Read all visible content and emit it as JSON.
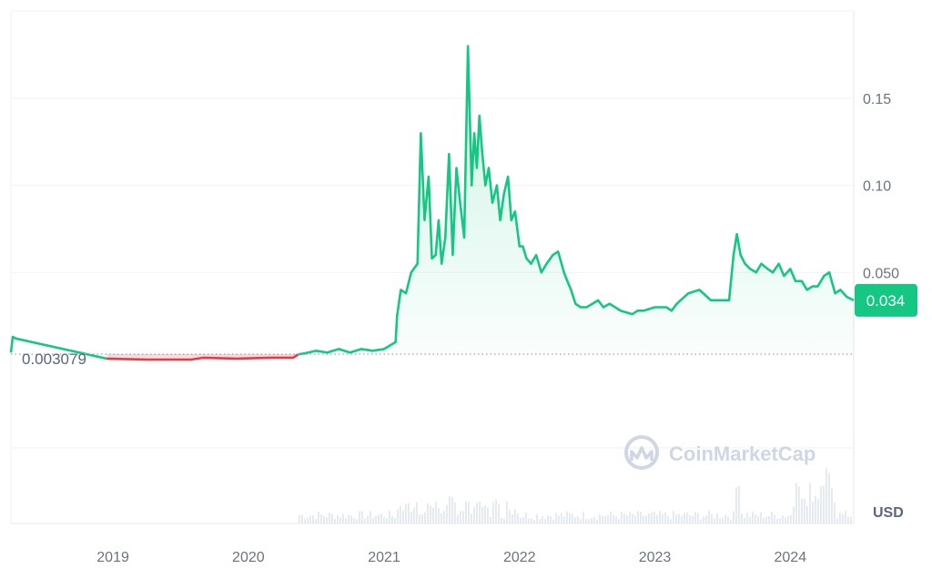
{
  "chart_data": {
    "type": "area",
    "title": "",
    "xlabel": "",
    "ylabel": "",
    "currency": "USD",
    "y_ticks": [
      {
        "value": 0.15,
        "label": "0.15"
      },
      {
        "value": 0.1,
        "label": "0.10"
      },
      {
        "value": 0.05,
        "label": "0.050"
      }
    ],
    "x_ticks": [
      {
        "date": "2019-01-01",
        "label": "2019"
      },
      {
        "date": "2020-01-01",
        "label": "2020"
      },
      {
        "date": "2021-01-01",
        "label": "2021"
      },
      {
        "date": "2022-01-01",
        "label": "2022"
      },
      {
        "date": "2023-01-01",
        "label": "2023"
      },
      {
        "date": "2024-01-01",
        "label": "2024"
      }
    ],
    "baseline": {
      "value": 0.003079,
      "label": "0.003079"
    },
    "current": {
      "value": 0.034,
      "label": "0.034"
    },
    "colors": {
      "up": "#16c784",
      "down": "#ea3943",
      "pill": "#16c784"
    },
    "watermark": "CoinMarketCap",
    "series": [
      {
        "x": [
          "2018-04-01",
          "2018-04-06",
          "2018-04-15",
          "2018-12-15",
          "2019-04-01",
          "2019-08-01",
          "2019-09-01",
          "2019-12-01",
          "2020-03-01",
          "2020-05-01",
          "2020-05-15",
          "2020-06-01",
          "2020-07-01",
          "2020-08-01",
          "2020-09-01",
          "2020-10-01",
          "2020-11-01",
          "2020-12-01",
          "2021-01-01",
          "2021-02-01",
          "2021-02-05",
          "2021-02-15",
          "2021-03-01",
          "2021-03-15",
          "2021-04-01",
          "2021-04-10",
          "2021-04-20",
          "2021-05-01",
          "2021-05-10",
          "2021-05-20",
          "2021-05-28",
          "2021-06-05",
          "2021-06-15",
          "2021-06-25",
          "2021-07-05",
          "2021-07-15",
          "2021-07-25",
          "2021-08-05",
          "2021-08-15",
          "2021-08-25",
          "2021-09-01",
          "2021-09-08",
          "2021-09-15",
          "2021-09-22",
          "2021-10-01",
          "2021-10-10",
          "2021-10-20",
          "2021-11-01",
          "2021-11-10",
          "2021-11-20",
          "2021-12-01",
          "2021-12-10",
          "2021-12-20",
          "2022-01-01",
          "2022-01-10",
          "2022-01-20",
          "2022-02-01",
          "2022-02-15",
          "2022-03-01",
          "2022-03-15",
          "2022-04-01",
          "2022-04-15",
          "2022-05-01",
          "2022-05-10",
          "2022-05-20",
          "2022-06-01",
          "2022-06-15",
          "2022-07-01",
          "2022-08-01",
          "2022-08-15",
          "2022-09-01",
          "2022-10-01",
          "2022-11-01",
          "2022-11-15",
          "2022-12-01",
          "2023-01-01",
          "2023-02-01",
          "2023-02-15",
          "2023-03-01",
          "2023-04-01",
          "2023-05-01",
          "2023-06-01",
          "2023-07-01",
          "2023-07-20",
          "2023-08-01",
          "2023-08-10",
          "2023-08-20",
          "2023-09-01",
          "2023-09-15",
          "2023-10-01",
          "2023-10-15",
          "2023-11-01",
          "2023-11-15",
          "2023-12-01",
          "2023-12-15",
          "2024-01-01",
          "2024-01-15",
          "2024-02-01",
          "2024-02-15",
          "2024-03-01",
          "2024-03-15",
          "2024-04-01",
          "2024-04-15",
          "2024-05-01",
          "2024-05-15",
          "2024-06-01",
          "2024-06-20"
        ],
        "y": [
          0.004,
          0.013,
          0.012,
          0.0005,
          0.0,
          0.0,
          0.001,
          0.0005,
          0.001,
          0.001,
          0.003,
          0.0035,
          0.005,
          0.004,
          0.006,
          0.004,
          0.006,
          0.005,
          0.006,
          0.01,
          0.025,
          0.04,
          0.038,
          0.05,
          0.055,
          0.13,
          0.08,
          0.105,
          0.058,
          0.06,
          0.08,
          0.055,
          0.07,
          0.118,
          0.06,
          0.11,
          0.09,
          0.07,
          0.18,
          0.1,
          0.13,
          0.11,
          0.14,
          0.12,
          0.1,
          0.11,
          0.09,
          0.1,
          0.08,
          0.095,
          0.105,
          0.08,
          0.085,
          0.065,
          0.065,
          0.058,
          0.055,
          0.06,
          0.05,
          0.055,
          0.06,
          0.062,
          0.05,
          0.045,
          0.04,
          0.032,
          0.03,
          0.03,
          0.034,
          0.03,
          0.032,
          0.028,
          0.026,
          0.028,
          0.028,
          0.03,
          0.03,
          0.028,
          0.032,
          0.038,
          0.04,
          0.034,
          0.034,
          0.034,
          0.06,
          0.072,
          0.06,
          0.055,
          0.052,
          0.05,
          0.055,
          0.052,
          0.05,
          0.055,
          0.048,
          0.052,
          0.045,
          0.045,
          0.04,
          0.042,
          0.042,
          0.048,
          0.05,
          0.038,
          0.04,
          0.036,
          0.034
        ]
      }
    ]
  }
}
